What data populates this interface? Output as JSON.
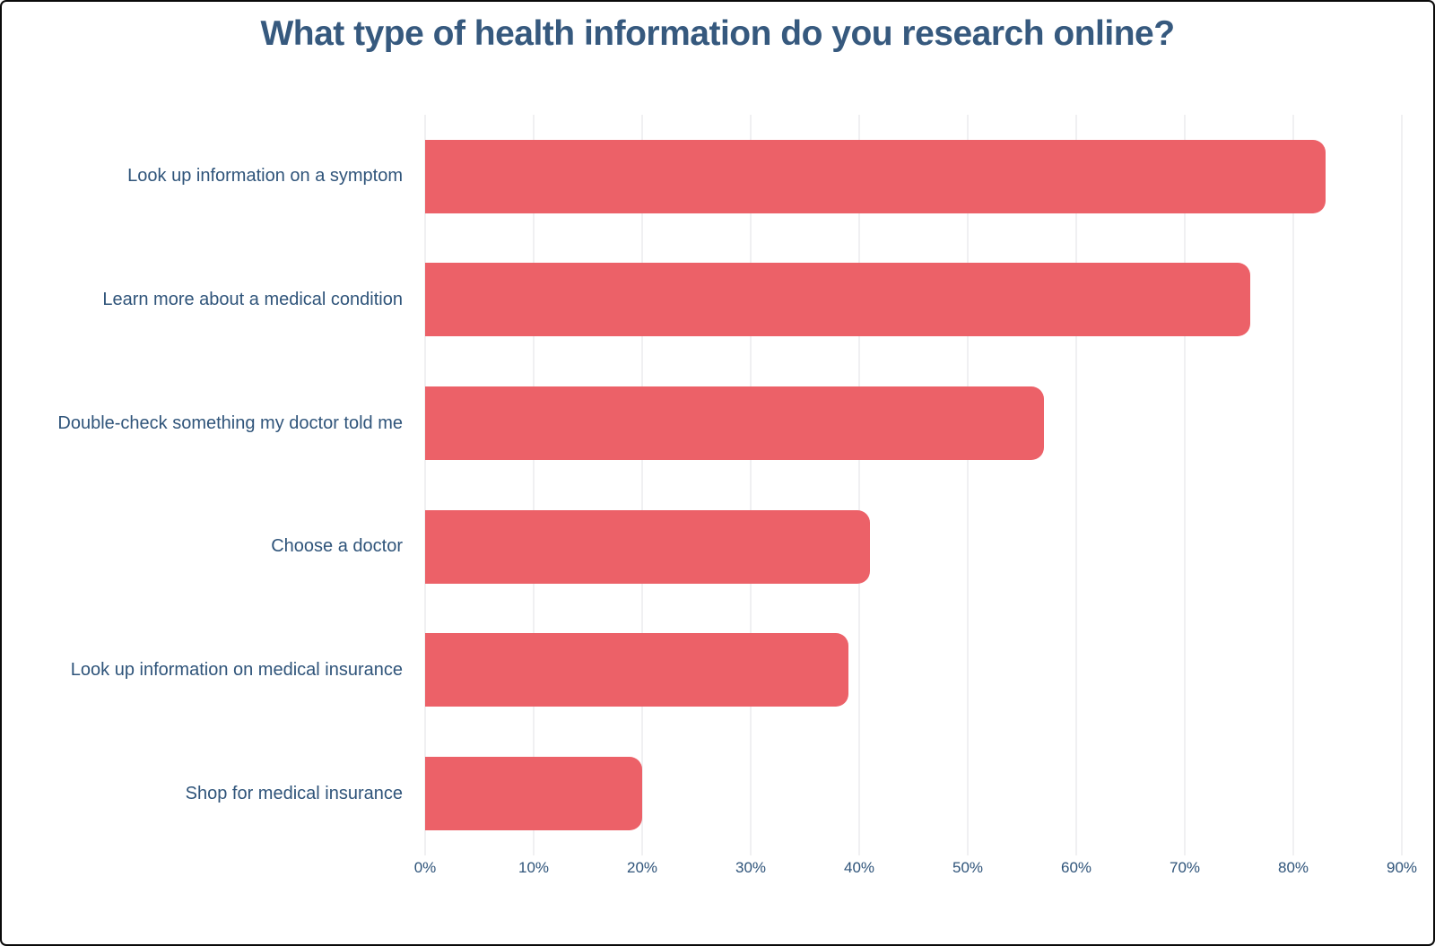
{
  "title": "What type of health information do you research online?",
  "colors": {
    "bar": "#ec6168",
    "title_text": "#36597e",
    "axis_text": "#2f547a",
    "gridline": "#e1e1e6",
    "frame_border": "#0a0a0a",
    "background": "#ffffff"
  },
  "chart_data": {
    "type": "bar",
    "orientation": "horizontal",
    "title": "What type of health information do you research online?",
    "xlabel": "",
    "ylabel": "",
    "xlim": [
      0,
      90
    ],
    "grid": "vertical-only",
    "legend": "none",
    "unit": "%",
    "x_ticks": [
      "0%",
      "10%",
      "20%",
      "30%",
      "40%",
      "50%",
      "60%",
      "70%",
      "80%",
      "90%"
    ],
    "x_tick_values": [
      0,
      10,
      20,
      30,
      40,
      50,
      60,
      70,
      80,
      90
    ],
    "categories": [
      "Look up information on a symptom",
      "Learn more about a medical condition",
      "Double-check something my doctor told me",
      "Choose a doctor",
      "Look up information on medical insurance",
      "Shop for medical insurance"
    ],
    "values": [
      83,
      76,
      57,
      41,
      39,
      20
    ]
  }
}
